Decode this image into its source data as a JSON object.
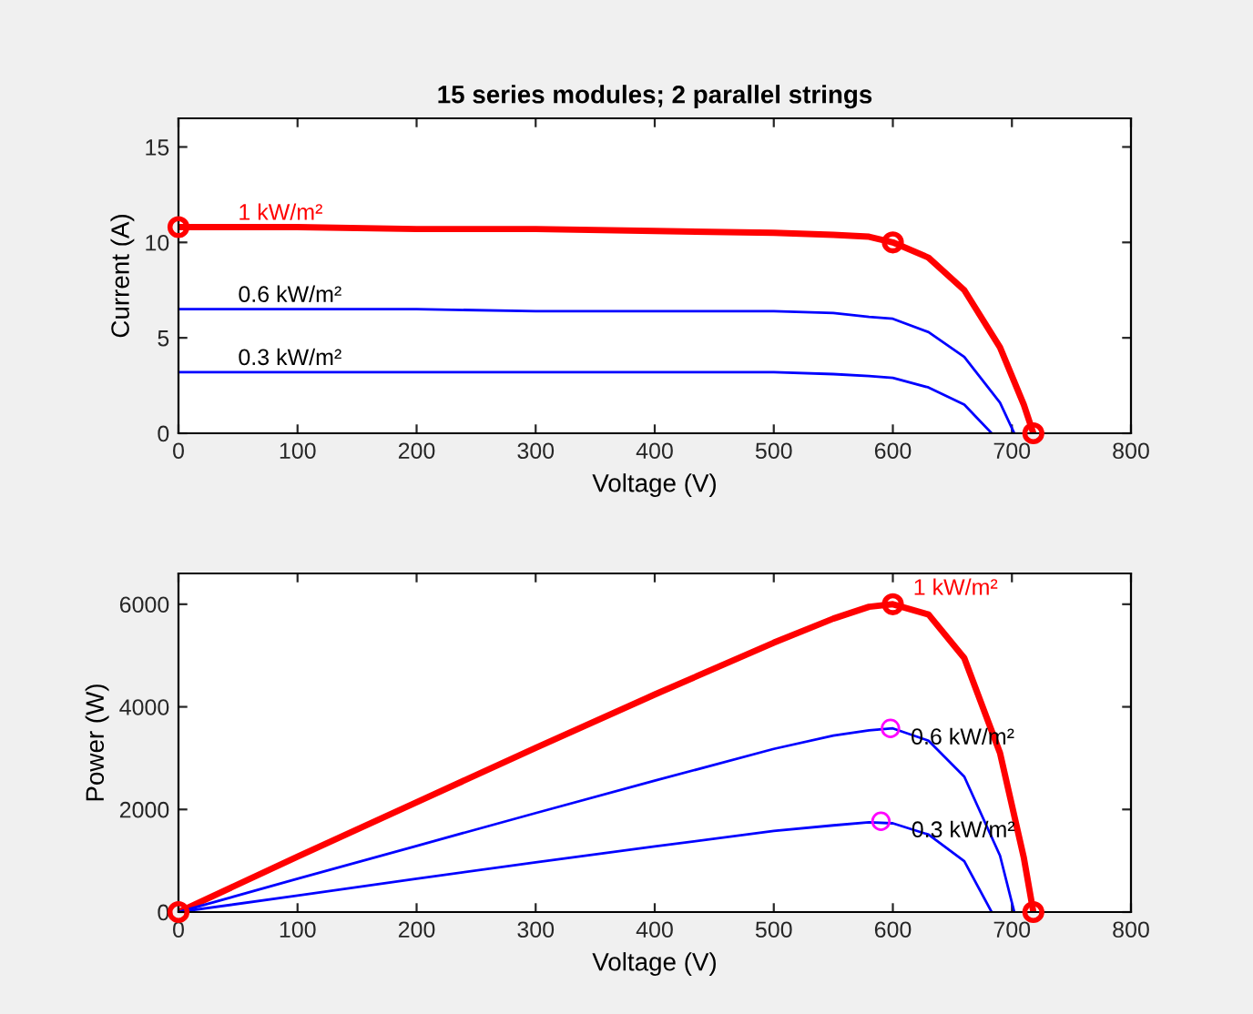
{
  "chart_data": [
    {
      "type": "line",
      "title": "15 series modules; 2 parallel strings",
      "xlabel": "Voltage (V)",
      "ylabel": "Current (A)",
      "xlim": [
        0,
        800
      ],
      "xticks": [
        0,
        100,
        200,
        300,
        400,
        500,
        600,
        700,
        800
      ],
      "ylim": [
        0,
        16.5
      ],
      "yticks": [
        0,
        5,
        10,
        15
      ],
      "grid": false,
      "legend": false,
      "series": [
        {
          "color": "#ff0000",
          "x": [
            0,
            100,
            200,
            300,
            400,
            500,
            550,
            580,
            600,
            630,
            660,
            690,
            710,
            718
          ],
          "values": [
            10.8,
            10.8,
            10.7,
            10.7,
            10.6,
            10.5,
            10.4,
            10.3,
            10.0,
            9.2,
            7.5,
            4.5,
            1.5,
            0
          ]
        },
        {
          "color": "#0000ff",
          "x": [
            0,
            100,
            200,
            300,
            400,
            500,
            550,
            580,
            600,
            630,
            660,
            690,
            702
          ],
          "values": [
            6.5,
            6.5,
            6.5,
            6.4,
            6.4,
            6.4,
            6.3,
            6.1,
            6.0,
            5.3,
            4.0,
            1.6,
            0
          ]
        },
        {
          "color": "#0000ff",
          "x": [
            0,
            100,
            200,
            300,
            400,
            500,
            550,
            580,
            600,
            630,
            660,
            683
          ],
          "values": [
            3.2,
            3.2,
            3.2,
            3.2,
            3.2,
            3.2,
            3.1,
            3.0,
            2.9,
            2.4,
            1.5,
            0
          ]
        },
        {
          "type": "scatter",
          "marker": "circle",
          "color": "#ff0000",
          "x": [
            0,
            600,
            718
          ],
          "values": [
            10.8,
            10.0,
            0
          ]
        }
      ],
      "annotations": [
        {
          "text": "1 kW/m²",
          "x": 50,
          "y": 10.8
        },
        {
          "text": "0.6 kW/m²",
          "x": 50,
          "y": 6.5
        },
        {
          "text": "0.3 kW/m²",
          "x": 50,
          "y": 3.2
        }
      ]
    },
    {
      "type": "line",
      "xlabel": "Voltage (V)",
      "ylabel": "Power (W)",
      "xlim": [
        0,
        800
      ],
      "xticks": [
        0,
        100,
        200,
        300,
        400,
        500,
        600,
        700,
        800
      ],
      "ylim": [
        0,
        6600
      ],
      "yticks": [
        0,
        2000,
        4000,
        6000
      ],
      "grid": false,
      "legend": false,
      "series": [
        {
          "color": "#ff0000",
          "x": [
            0,
            100,
            200,
            300,
            400,
            500,
            550,
            580,
            600,
            630,
            660,
            690,
            710,
            718
          ],
          "values": [
            0,
            1080,
            2140,
            3200,
            4240,
            5250,
            5720,
            5950,
            6000,
            5800,
            4950,
            3100,
            1060,
            0
          ]
        },
        {
          "color": "#0000ff",
          "x": [
            0,
            100,
            200,
            300,
            400,
            500,
            550,
            580,
            600,
            630,
            660,
            690,
            702
          ],
          "values": [
            0,
            650,
            1290,
            1930,
            2560,
            3180,
            3440,
            3540,
            3580,
            3340,
            2640,
            1100,
            0
          ]
        },
        {
          "color": "#0000ff",
          "x": [
            0,
            100,
            200,
            300,
            400,
            500,
            550,
            580,
            600,
            630,
            660,
            683
          ],
          "values": [
            0,
            320,
            650,
            970,
            1280,
            1580,
            1690,
            1750,
            1730,
            1510,
            990,
            0
          ]
        },
        {
          "type": "scatter",
          "marker": "circle",
          "color": "#ff0000",
          "x": [
            0,
            600,
            718
          ],
          "values": [
            0,
            6000,
            0
          ]
        },
        {
          "type": "scatter",
          "marker": "circle",
          "color": "#ff00ff",
          "x": [
            598,
            590
          ],
          "values": [
            3580,
            1770
          ]
        }
      ],
      "annotations": [
        {
          "text": "1 kW/m²",
          "x": 600,
          "y": 6000
        },
        {
          "text": "0.6 kW/m²",
          "x": 598,
          "y": 3580
        },
        {
          "text": "0.3 kW/m²",
          "x": 590,
          "y": 1770
        }
      ]
    }
  ]
}
